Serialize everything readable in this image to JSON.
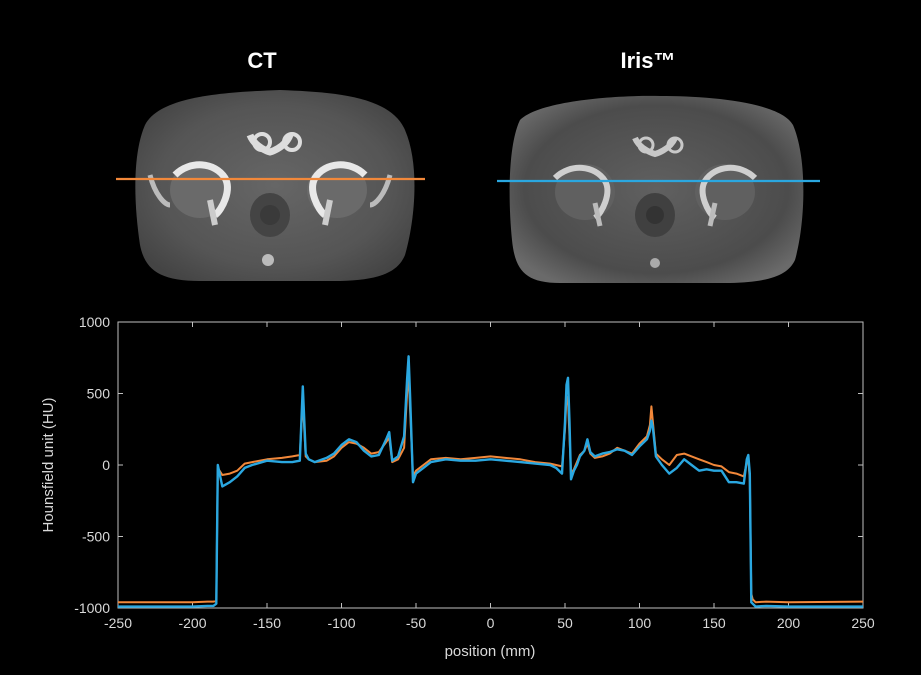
{
  "panels": [
    {
      "title": "CT",
      "line_color": "#f2883a"
    },
    {
      "title": "Iris™",
      "line_color": "#2aa7e0"
    }
  ],
  "chart_data": {
    "type": "line",
    "xlabel": "position (mm)",
    "ylabel": "Hounsfield unit (HU)",
    "xlim": [
      -250,
      250
    ],
    "ylim": [
      -1000,
      1000
    ],
    "xticks": [
      -250,
      -200,
      -150,
      -100,
      -50,
      0,
      50,
      100,
      150,
      200,
      250
    ],
    "yticks": [
      -1000,
      -500,
      0,
      500,
      1000
    ],
    "grid": false,
    "series": [
      {
        "color": "#f2883a",
        "x": [
          -250,
          -200,
          -190,
          -186,
          -184,
          -183,
          -180,
          -175,
          -170,
          -165,
          -160,
          -150,
          -140,
          -133,
          -128,
          -126,
          -124,
          -122,
          -118,
          -110,
          -105,
          -100,
          -95,
          -90,
          -85,
          -80,
          -75,
          -70,
          -68,
          -66,
          -62,
          -58,
          -56,
          -55,
          -54,
          -52,
          -50,
          -45,
          -40,
          -30,
          -20,
          -10,
          0,
          10,
          20,
          30,
          40,
          44,
          48,
          50,
          51,
          52,
          53,
          54,
          56,
          58,
          60,
          63,
          65,
          67,
          70,
          75,
          80,
          85,
          90,
          95,
          100,
          105,
          107,
          108,
          109,
          111,
          115,
          120,
          125,
          130,
          135,
          140,
          145,
          150,
          155,
          160,
          165,
          170,
          172,
          173,
          174,
          175,
          176,
          178,
          185,
          200,
          250
        ],
        "y": [
          -960,
          -960,
          -955,
          -955,
          -950,
          -20,
          -70,
          -60,
          -40,
          10,
          20,
          40,
          50,
          60,
          70,
          450,
          60,
          40,
          20,
          30,
          60,
          120,
          160,
          150,
          120,
          80,
          90,
          160,
          190,
          20,
          40,
          120,
          500,
          650,
          400,
          -80,
          -40,
          0,
          40,
          50,
          40,
          50,
          60,
          50,
          40,
          20,
          10,
          0,
          -10,
          250,
          480,
          450,
          200,
          -60,
          -30,
          20,
          70,
          100,
          150,
          80,
          50,
          60,
          80,
          120,
          100,
          80,
          150,
          200,
          280,
          410,
          300,
          80,
          40,
          0,
          70,
          80,
          60,
          40,
          20,
          0,
          -10,
          -50,
          -60,
          -80,
          20,
          40,
          -100,
          -900,
          -940,
          -960,
          -955,
          -960,
          -955
        ]
      },
      {
        "color": "#2aa7e0",
        "x": [
          -250,
          -200,
          -190,
          -186,
          -184,
          -183,
          -180,
          -175,
          -170,
          -165,
          -160,
          -150,
          -140,
          -133,
          -128,
          -126,
          -124,
          -122,
          -118,
          -110,
          -105,
          -100,
          -95,
          -90,
          -85,
          -80,
          -75,
          -70,
          -68,
          -66,
          -62,
          -58,
          -56,
          -55,
          -54,
          -52,
          -50,
          -45,
          -40,
          -30,
          -20,
          -10,
          0,
          10,
          20,
          30,
          40,
          44,
          48,
          50,
          51,
          52,
          53,
          54,
          56,
          58,
          60,
          63,
          65,
          67,
          70,
          75,
          80,
          85,
          90,
          95,
          100,
          105,
          107,
          108,
          109,
          111,
          115,
          120,
          125,
          130,
          135,
          140,
          145,
          150,
          155,
          160,
          165,
          170,
          172,
          173,
          174,
          175,
          176,
          178,
          185,
          200,
          250
        ],
        "y": [
          -990,
          -990,
          -985,
          -985,
          -970,
          0,
          -150,
          -120,
          -80,
          -20,
          0,
          30,
          20,
          20,
          30,
          550,
          80,
          40,
          20,
          50,
          80,
          140,
          180,
          160,
          100,
          60,
          70,
          180,
          230,
          30,
          60,
          200,
          600,
          760,
          500,
          -120,
          -60,
          -20,
          20,
          40,
          30,
          30,
          40,
          30,
          20,
          10,
          0,
          -20,
          -60,
          300,
          560,
          610,
          300,
          -100,
          -40,
          0,
          60,
          100,
          180,
          90,
          60,
          80,
          90,
          110,
          100,
          70,
          130,
          180,
          240,
          310,
          260,
          60,
          0,
          -60,
          -20,
          40,
          0,
          -40,
          -30,
          -40,
          -40,
          -120,
          -120,
          -130,
          40,
          70,
          -60,
          -960,
          -970,
          -990,
          -985,
          -990,
          -990
        ]
      }
    ]
  }
}
